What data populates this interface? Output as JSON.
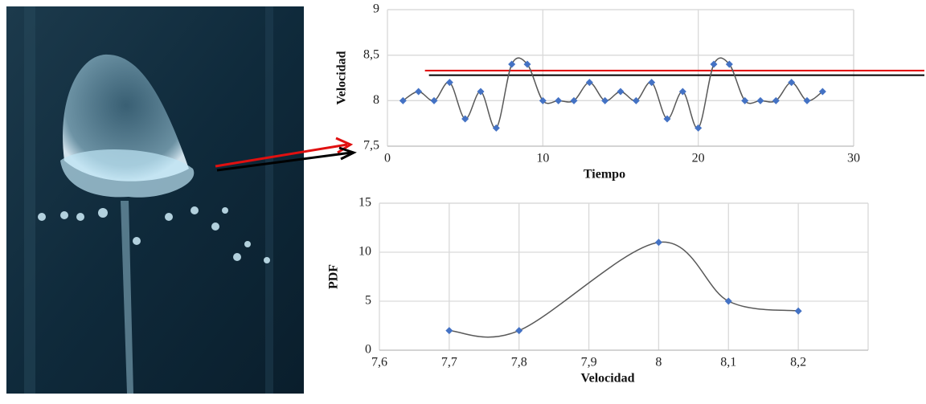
{
  "chart_data": [
    {
      "type": "line",
      "smooth": true,
      "marker": "diamond",
      "x_label": "Tiempo",
      "y_label": "Velocidad",
      "x": [
        1,
        2,
        3,
        4,
        5,
        6,
        7,
        8,
        9,
        10,
        11,
        12,
        13,
        14,
        15,
        16,
        17,
        18,
        19,
        20,
        21,
        22,
        23,
        24,
        25,
        26,
        27,
        28
      ],
      "series": [
        {
          "color": "#4472c4",
          "line_color": "#595959",
          "values": [
            8.0,
            8.1,
            8.0,
            8.2,
            7.8,
            8.1,
            7.7,
            8.4,
            8.4,
            8.0,
            8.0,
            8.0,
            8.2,
            8.0,
            8.1,
            8.0,
            8.2,
            7.8,
            8.1,
            7.7,
            8.4,
            8.4,
            8.0,
            8.0,
            8.0,
            8.2,
            8.0,
            8.1
          ]
        }
      ],
      "reference_lines": [
        {
          "value": 8.33,
          "color": "#e00000"
        },
        {
          "value": 8.28,
          "color": "#000000"
        }
      ],
      "xlim": [
        0,
        30
      ],
      "xticks": [
        0,
        10,
        20,
        30
      ],
      "ylim": [
        7.5,
        9
      ],
      "yticks": [
        {
          "value": 7.5,
          "label": "7,5"
        },
        8,
        {
          "value": 8.5,
          "label": "8,5"
        },
        9
      ],
      "grid": true
    },
    {
      "type": "line",
      "smooth": true,
      "marker": "diamond",
      "x_label": "Velocidad",
      "y_label": "PDF",
      "x": [
        7.7,
        7.8,
        8.0,
        8.1,
        8.2
      ],
      "series": [
        {
          "color": "#4472c4",
          "line_color": "#595959",
          "values": [
            2,
            2,
            11,
            5,
            4
          ]
        }
      ],
      "xlim": [
        7.6,
        8.3
      ],
      "xticks": [
        {
          "value": 7.6,
          "label": "7,6"
        },
        {
          "value": 7.7,
          "label": "7,7"
        },
        {
          "value": 7.8,
          "label": "7,8"
        },
        {
          "value": 7.9,
          "label": "7,9"
        },
        8,
        {
          "value": 8.1,
          "label": "8,1"
        },
        {
          "value": 8.2,
          "label": "8,2"
        }
      ],
      "ylim": [
        0,
        15
      ],
      "yticks": [
        0,
        5,
        10,
        15
      ],
      "grid": true
    }
  ]
}
